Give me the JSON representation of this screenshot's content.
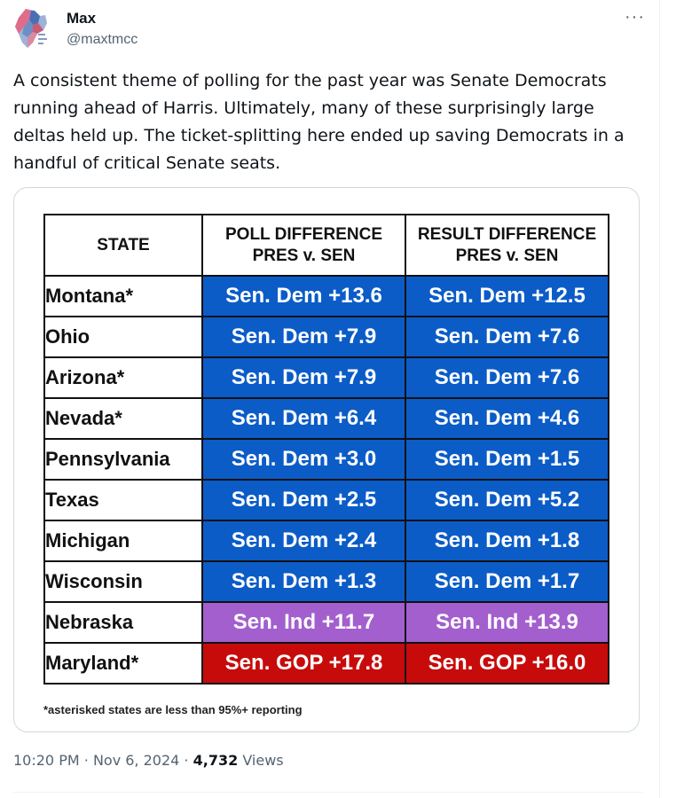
{
  "author": {
    "name": "Max",
    "handle": "@maxtmcc"
  },
  "tweet": {
    "text": "A consistent theme of polling for the past year was Senate Democrats running ahead of Harris. Ultimately, many of these surprisingly large deltas held up. The ticket-splitting here ended up saving Democrats in a handful of critical Senate seats.",
    "more_label": "···"
  },
  "table": {
    "headers": {
      "state": "STATE",
      "poll_line1": "POLL DIFFERENCE",
      "poll_line2": "PRES v. SEN",
      "result_line1": "RESULT DIFFERENCE",
      "result_line2": "PRES v. SEN"
    },
    "rows": [
      {
        "state": "Montana*",
        "poll": "Sen. Dem +13.6",
        "result": "Sen. Dem +12.5",
        "poll_color": "#0b5cc7",
        "result_color": "#0b5cc7"
      },
      {
        "state": "Ohio",
        "poll": "Sen. Dem +7.9",
        "result": "Sen. Dem +7.6",
        "poll_color": "#0b5cc7",
        "result_color": "#0b5cc7"
      },
      {
        "state": "Arizona*",
        "poll": "Sen. Dem +7.9",
        "result": "Sen. Dem +7.6",
        "poll_color": "#0b5cc7",
        "result_color": "#0b5cc7"
      },
      {
        "state": "Nevada*",
        "poll": "Sen. Dem +6.4",
        "result": "Sen. Dem +4.6",
        "poll_color": "#0b5cc7",
        "result_color": "#0b5cc7"
      },
      {
        "state": "Pennsylvania",
        "poll": "Sen. Dem +3.0",
        "result": "Sen. Dem +1.5",
        "poll_color": "#0b5cc7",
        "result_color": "#0b5cc7"
      },
      {
        "state": "Texas",
        "poll": "Sen. Dem +2.5",
        "result": "Sen. Dem +5.2",
        "poll_color": "#0b5cc7",
        "result_color": "#0b5cc7"
      },
      {
        "state": "Michigan",
        "poll": "Sen. Dem +2.4",
        "result": "Sen. Dem +1.8",
        "poll_color": "#0b5cc7",
        "result_color": "#0b5cc7"
      },
      {
        "state": "Wisconsin",
        "poll": "Sen. Dem +1.3",
        "result": "Sen. Dem +1.7",
        "poll_color": "#0b5cc7",
        "result_color": "#0b5cc7"
      },
      {
        "state": "Nebraska",
        "poll": "Sen. Ind +11.7",
        "result": "Sen. Ind +13.9",
        "poll_color": "#a35fcd",
        "result_color": "#a35fcd"
      },
      {
        "state": "Maryland*",
        "poll": "Sen. GOP +17.8",
        "result": "Sen. GOP +16.0",
        "poll_color": "#c70b0b",
        "result_color": "#c70b0b"
      }
    ],
    "footnote": "*asterisked states are less than 95%+ reporting"
  },
  "meta": {
    "time": "10:20 PM",
    "separator": "·",
    "date": "Nov 6, 2024",
    "views_count": "4,732",
    "views_label": "Views"
  }
}
